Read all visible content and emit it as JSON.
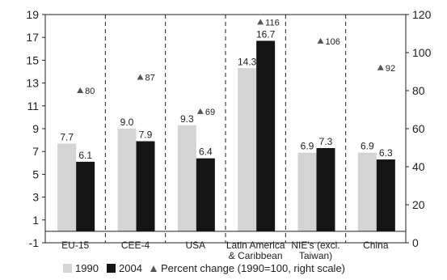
{
  "chart_data": {
    "type": "bar",
    "categories": [
      "EU-15",
      "CEE-4",
      "USA",
      "Latin America\n& Caribbean",
      "NIE's (excl.\nTaiwan)",
      "China"
    ],
    "series": [
      {
        "name": "1990",
        "values": [
          7.7,
          9.0,
          9.3,
          14.3,
          6.9,
          6.9
        ],
        "labels": [
          "7.7",
          "9.0",
          "9.3",
          "14.3",
          "6.9",
          "6.9"
        ],
        "color": "#d4d4d4"
      },
      {
        "name": "2004",
        "values": [
          6.1,
          7.9,
          6.4,
          16.7,
          7.3,
          6.3
        ],
        "labels": [
          "6.1",
          "7.9",
          "6.4",
          "16.7",
          "7.3",
          "6.3"
        ],
        "color": "#141414"
      }
    ],
    "secondary_series": {
      "name": "Percent change (1990=100, right scale)",
      "type": "scatter",
      "marker": "triangle",
      "values": [
        80,
        87,
        69,
        116,
        106,
        92
      ],
      "labels": [
        "80",
        "87",
        "69",
        "116",
        "106",
        "92"
      ],
      "color": "#555555"
    },
    "ylim": [
      -1,
      19
    ],
    "yticks": [
      "-1",
      "1",
      "3",
      "5",
      "7",
      "9",
      "11",
      "13",
      "15",
      "17",
      "19"
    ],
    "y2lim": [
      0,
      120
    ],
    "y2ticks": [
      "0",
      "20",
      "40",
      "60",
      "80",
      "100",
      "120"
    ],
    "grid": "vertical dashed separators between categories",
    "legend_position": "bottom"
  }
}
